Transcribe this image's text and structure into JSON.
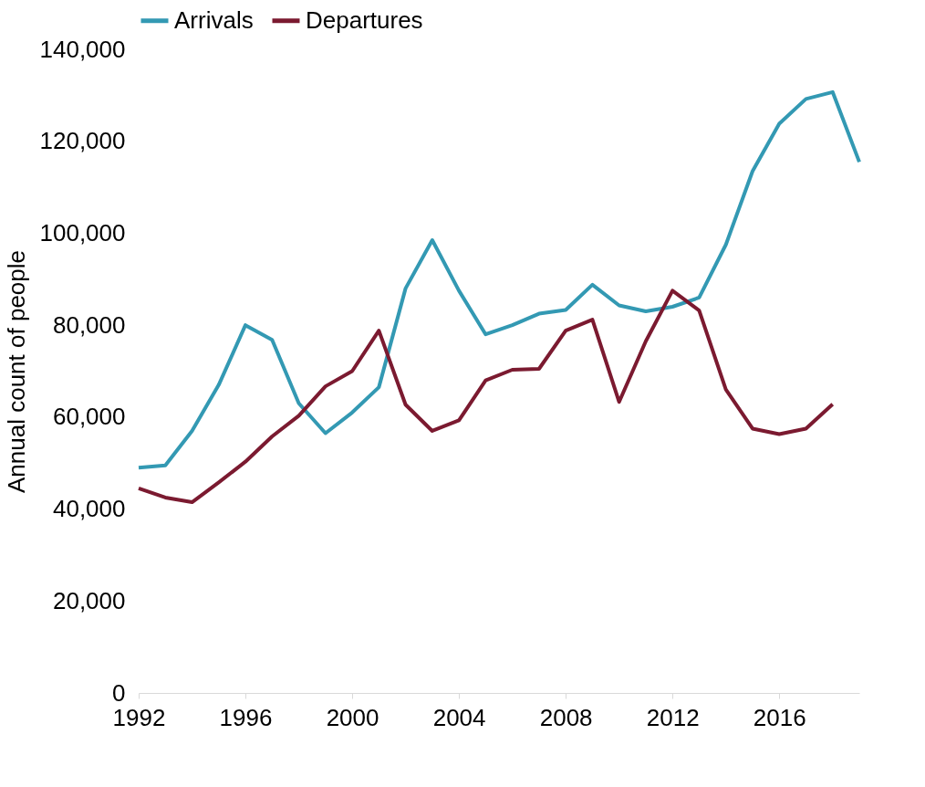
{
  "chart_data": {
    "type": "line",
    "ylabel": "Annual count of people",
    "x": [
      1992,
      1993,
      1994,
      1995,
      1996,
      1997,
      1998,
      1999,
      2000,
      2001,
      2002,
      2003,
      2004,
      2005,
      2006,
      2007,
      2008,
      2009,
      2010,
      2011,
      2012,
      2013,
      2014,
      2015,
      2016,
      2017,
      2018,
      2019
    ],
    "series": [
      {
        "name": "Arrivals",
        "color": "#3399b3",
        "values": [
          49000,
          49500,
          57000,
          67000,
          80000,
          76800,
          63000,
          56500,
          61000,
          66500,
          88000,
          98500,
          87500,
          78000,
          80000,
          82500,
          83300,
          88800,
          84300,
          83000,
          84000,
          86000,
          97500,
          113500,
          123800,
          129200,
          130700,
          115500
        ]
      },
      {
        "name": "Departures",
        "color": "#7b1a30",
        "values": [
          44500,
          42500,
          41500,
          45800,
          50300,
          55800,
          60300,
          66700,
          70000,
          78800,
          62700,
          57000,
          59300,
          68000,
          70300,
          70500,
          78800,
          81200,
          63300,
          76500,
          87500,
          83200,
          66000,
          57500,
          56300,
          57500,
          62800,
          null
        ]
      }
    ],
    "xlim": [
      1992,
      2019
    ],
    "xticks": [
      1992,
      1996,
      2000,
      2004,
      2008,
      2012,
      2016
    ],
    "ylim": [
      0,
      140000
    ],
    "yticks": [
      0,
      {
        "value": 20000,
        "label": "20,000"
      },
      {
        "value": 40000,
        "label": "40,000"
      },
      {
        "value": 60000,
        "label": "60,000"
      },
      {
        "value": 80000,
        "label": "80,000"
      },
      {
        "value": 100000,
        "label": "100,000"
      },
      {
        "value": 120000,
        "label": "120,000"
      },
      {
        "value": 140000,
        "label": "140,000"
      }
    ],
    "grid": false,
    "legend": "top",
    "marker": "none",
    "line_style": "solid"
  }
}
